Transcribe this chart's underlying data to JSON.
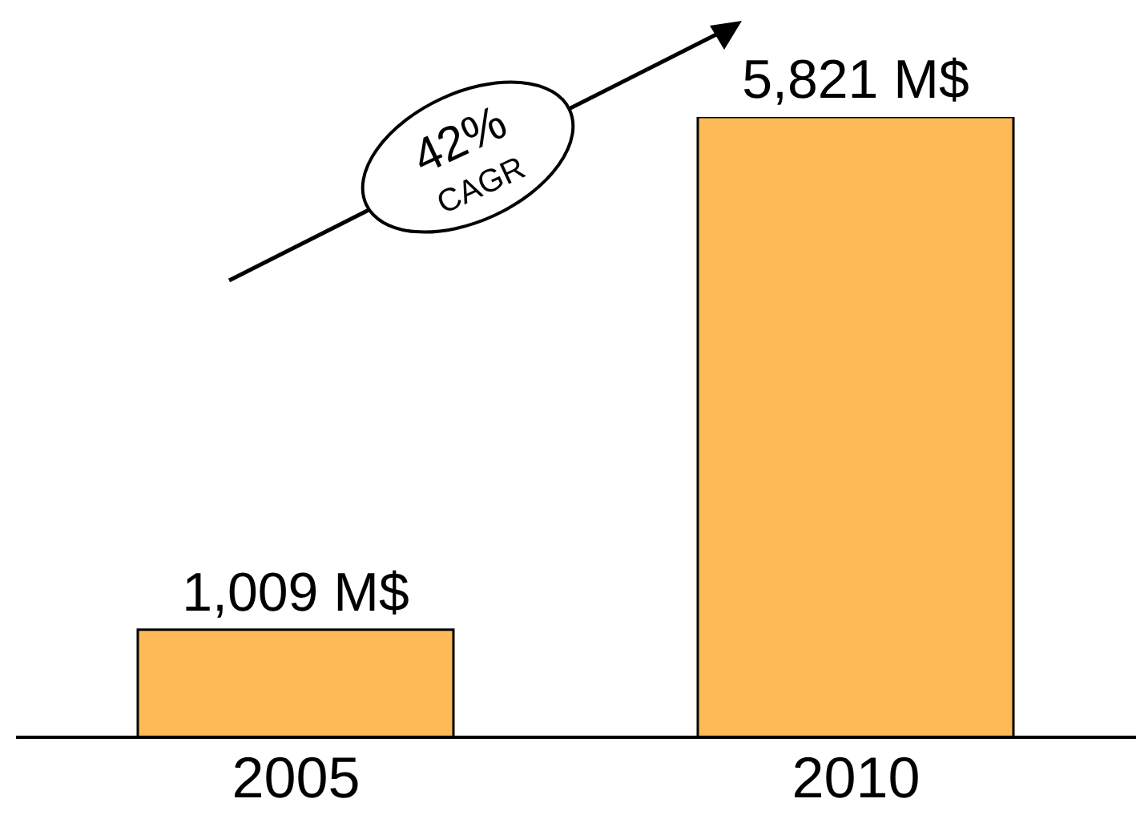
{
  "chart_data": {
    "type": "bar",
    "categories": [
      "2005",
      "2010"
    ],
    "values": [
      1009,
      5821
    ],
    "color": "#fdba57",
    "value_labels": [
      "1,009 M$",
      "5,821 M$"
    ],
    "annotations": [
      "42% CAGR"
    ]
  }
}
